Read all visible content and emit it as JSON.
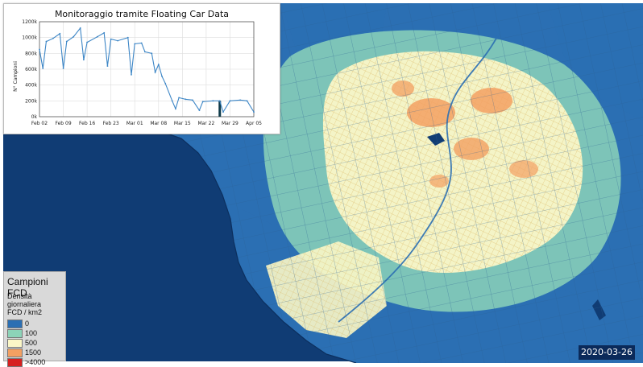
{
  "colors": {
    "sea": "#103c74",
    "band_0": "#2b6fb3",
    "band_100": "#8cd3b8",
    "band_500": "#fbf7c7",
    "band_1500": "#f3a062",
    "band_4000": "#d62020",
    "line": "#3d86c6"
  },
  "inset": {
    "title": "Monitoraggio tramite Floating Car Data",
    "chart_data": {
      "type": "line",
      "title": "Monitoraggio tramite Floating Car Data",
      "xlabel": "",
      "ylabel": "N° Campioni",
      "x_tick_labels": [
        "Feb 02",
        "Feb 09",
        "Feb 16",
        "Feb 23",
        "Mar 01",
        "Mar 08",
        "Mar 15",
        "Mar 22",
        "Mar 29",
        "Apr 05"
      ],
      "y_tick_labels": [
        "0k",
        "200k",
        "400k",
        "600k",
        "800k",
        "1000k",
        "1200k"
      ],
      "ylim": [
        0,
        1200000
      ],
      "grid": true,
      "x_start": "2020-02-02",
      "x_end": "2020-04-05",
      "marker_date": "2020-03-26",
      "series": [
        {
          "values": [
            {
              "x": "2020-02-02",
              "y": 850000
            },
            {
              "x": "2020-02-03",
              "y": 610000
            },
            {
              "x": "2020-02-04",
              "y": 950000
            },
            {
              "x": "2020-02-06",
              "y": 990000
            },
            {
              "x": "2020-02-08",
              "y": 1050000
            },
            {
              "x": "2020-02-09",
              "y": 610000
            },
            {
              "x": "2020-02-10",
              "y": 950000
            },
            {
              "x": "2020-02-12",
              "y": 1010000
            },
            {
              "x": "2020-02-14",
              "y": 1120000
            },
            {
              "x": "2020-02-15",
              "y": 720000
            },
            {
              "x": "2020-02-16",
              "y": 940000
            },
            {
              "x": "2020-02-19",
              "y": 1010000
            },
            {
              "x": "2020-02-21",
              "y": 1060000
            },
            {
              "x": "2020-02-22",
              "y": 640000
            },
            {
              "x": "2020-02-23",
              "y": 980000
            },
            {
              "x": "2020-02-25",
              "y": 960000
            },
            {
              "x": "2020-02-28",
              "y": 1000000
            },
            {
              "x": "2020-02-29",
              "y": 530000
            },
            {
              "x": "2020-03-01",
              "y": 920000
            },
            {
              "x": "2020-03-03",
              "y": 930000
            },
            {
              "x": "2020-03-04",
              "y": 820000
            },
            {
              "x": "2020-03-06",
              "y": 800000
            },
            {
              "x": "2020-03-07",
              "y": 560000
            },
            {
              "x": "2020-03-08",
              "y": 660000
            },
            {
              "x": "2020-03-09",
              "y": 510000
            },
            {
              "x": "2020-03-10",
              "y": 420000
            },
            {
              "x": "2020-03-12",
              "y": 200000
            },
            {
              "x": "2020-03-13",
              "y": 100000
            },
            {
              "x": "2020-03-14",
              "y": 240000
            },
            {
              "x": "2020-03-16",
              "y": 220000
            },
            {
              "x": "2020-03-18",
              "y": 210000
            },
            {
              "x": "2020-03-20",
              "y": 80000
            },
            {
              "x": "2020-03-21",
              "y": 190000
            },
            {
              "x": "2020-03-24",
              "y": 200000
            },
            {
              "x": "2020-03-26",
              "y": 200000
            },
            {
              "x": "2020-03-27",
              "y": 60000
            },
            {
              "x": "2020-03-29",
              "y": 200000
            },
            {
              "x": "2020-04-01",
              "y": 210000
            },
            {
              "x": "2020-04-03",
              "y": 200000
            },
            {
              "x": "2020-04-05",
              "y": 60000
            }
          ]
        }
      ]
    }
  },
  "legend": {
    "title": "Campioni FCD",
    "subtitle": "Densità giornaliera\nFCD / km2",
    "items": [
      {
        "label": "0",
        "color": "#2b6fb3"
      },
      {
        "label": "100",
        "color": "#8cd3b8"
      },
      {
        "label": "500",
        "color": "#fbf7c7"
      },
      {
        "label": "1500",
        "color": "#f3a062"
      },
      {
        "label": ">4000",
        "color": "#d62020"
      }
    ]
  },
  "date_badge": "2020-03-26"
}
